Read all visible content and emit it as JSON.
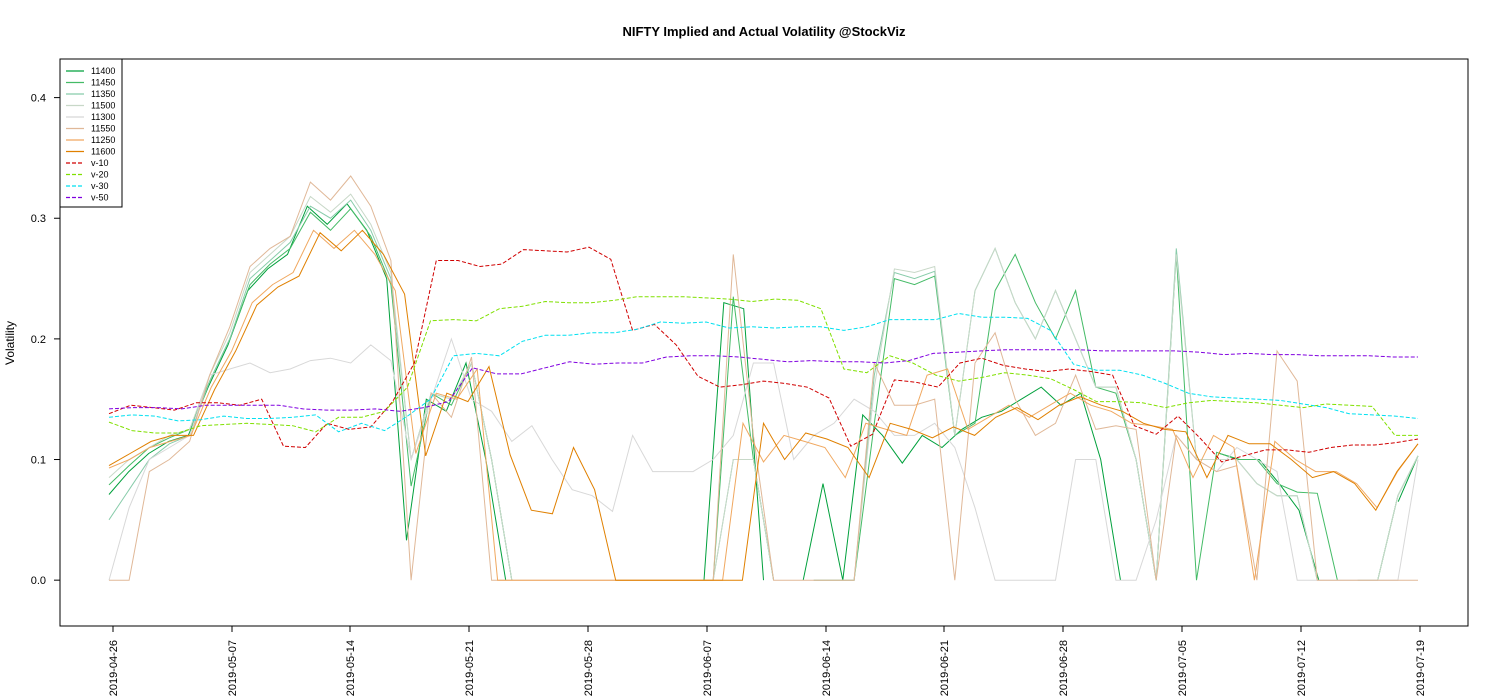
{
  "chart_data": {
    "type": "line",
    "title": "NIFTY Implied and Actual Volatility @StockViz",
    "xlabel": "",
    "ylabel": "Volatility",
    "ylim": [
      -0.038,
      0.432
    ],
    "yticks": [
      0.0,
      0.1,
      0.2,
      0.3,
      0.4
    ],
    "ytick_labels": [
      "0.0",
      "0.1",
      "0.2",
      "0.3",
      "0.4"
    ],
    "xlim": [
      0,
      58
    ],
    "xticks": [
      0,
      7,
      14,
      21,
      28,
      35,
      42,
      49,
      56
    ],
    "xtick_labels": [
      "2019-04-26",
      "2019-05-07",
      "2019-05-14",
      "2019-05-21",
      "2019-05-28",
      "2019-06-07",
      "2019-06-14",
      "2019-06-21",
      "2019-06-28",
      "2019-07-05",
      "2019-07-12",
      "2019-07-19"
    ],
    "xtick_positions": [
      0,
      7,
      14,
      21,
      28,
      35,
      42,
      49,
      56,
      63,
      70,
      77
    ],
    "legend_position": "top-left",
    "grid": false,
    "series": [
      {
        "name": "11400",
        "color": "#00a03c",
        "dash": "",
        "values": [
          0.071,
          0.09,
          0.105,
          0.115,
          0.12,
          0.16,
          0.195,
          0.24,
          0.258,
          0.27,
          0.31,
          0.295,
          0.312,
          0.29,
          0.25,
          0.033,
          0.15,
          0.14,
          0.18,
          0.1,
          0.0,
          null,
          null,
          null,
          null,
          null,
          null,
          null,
          null,
          null,
          0.0,
          0.23,
          0.225,
          0.0,
          null,
          0.0,
          0.08,
          0.0,
          0.137,
          0.12,
          0.097,
          0.12,
          0.11,
          0.125,
          0.135,
          0.14,
          0.15,
          0.16,
          0.145,
          0.155,
          0.1,
          0.0,
          null,
          null,
          null,
          null,
          0.105,
          0.1,
          0.1,
          0.08,
          0.058,
          0.0,
          null,
          null,
          null,
          0.065,
          0.103
        ]
      },
      {
        "name": "11450",
        "color": "#44bb66",
        "dash": "",
        "values": [
          0.079,
          0.095,
          0.11,
          0.118,
          0.125,
          0.165,
          0.2,
          0.245,
          0.262,
          0.275,
          0.305,
          0.29,
          0.308,
          0.285,
          0.245,
          0.078,
          0.155,
          0.145,
          0.18,
          0.1,
          0.0,
          null,
          null,
          null,
          null,
          null,
          null,
          null,
          null,
          null,
          0.0,
          0.235,
          0.1,
          0.0,
          null,
          0.0,
          0.0,
          0.0,
          0.13,
          0.25,
          0.245,
          0.252,
          0.12,
          0.13,
          0.24,
          0.27,
          0.23,
          0.2,
          0.24,
          0.16,
          0.155,
          0.1,
          0.0,
          0.27,
          0.0,
          0.106,
          0.1,
          0.1,
          0.08,
          0.073,
          0.072,
          0.0,
          null,
          0.0,
          0.07,
          0.103
        ]
      },
      {
        "name": "11350",
        "color": "#88ccaa",
        "dash": "",
        "values": [
          0.05,
          0.075,
          0.1,
          0.113,
          0.12,
          0.165,
          0.2,
          0.25,
          0.265,
          0.28,
          0.31,
          0.3,
          0.315,
          0.29,
          0.25,
          0.1,
          0.155,
          0.15,
          0.18,
          0.1,
          0.0,
          null,
          null,
          null,
          null,
          null,
          null,
          null,
          null,
          null,
          0.0,
          0.1,
          0.1,
          0.0,
          null,
          0.0,
          0.0,
          0.0,
          0.17,
          0.255,
          0.25,
          0.256,
          0.12,
          0.24,
          0.275,
          0.23,
          0.2,
          0.24,
          0.2,
          0.16,
          0.16,
          0.1,
          0.0,
          0.275,
          0.1,
          0.1,
          0.1,
          0.08,
          0.07,
          0.07,
          0.0,
          null,
          0.0,
          0.0,
          0.07,
          0.103
        ]
      },
      {
        "name": "11500",
        "color": "#c8d8c8",
        "dash": "",
        "values": [
          0.085,
          0.1,
          0.11,
          0.12,
          0.125,
          0.17,
          0.205,
          0.255,
          0.27,
          0.285,
          0.318,
          0.305,
          0.32,
          0.295,
          0.255,
          0.1,
          0.155,
          0.15,
          0.18,
          0.1,
          0.0,
          null,
          null,
          null,
          null,
          null,
          null,
          null,
          null,
          null,
          0.0,
          0.1,
          0.1,
          0.0,
          null,
          0.0,
          0.0,
          0.0,
          0.16,
          0.258,
          0.255,
          0.26,
          0.12,
          0.24,
          0.275,
          0.23,
          0.2,
          0.24,
          0.2,
          0.16,
          0.16,
          0.1,
          0.0,
          0.27,
          0.1,
          0.1,
          0.1,
          0.08,
          0.07,
          0.07,
          0.0,
          null,
          0.0,
          0.0,
          0.07,
          0.103
        ]
      },
      {
        "name": "11300",
        "color": "#d8d8d8",
        "dash": "",
        "values": [
          0.0,
          0.06,
          0.1,
          0.11,
          0.12,
          0.17,
          0.175,
          0.18,
          0.172,
          0.175,
          0.182,
          0.184,
          0.18,
          0.195,
          0.182,
          0.1,
          0.15,
          0.2,
          0.15,
          0.14,
          0.115,
          0.128,
          0.1,
          0.075,
          0.07,
          0.057,
          0.12,
          0.09,
          0.09,
          0.09,
          0.1,
          0.12,
          0.18,
          0.18,
          0.1,
          0.12,
          0.13,
          0.15,
          0.14,
          0.12,
          0.12,
          0.13,
          0.11,
          0.06,
          0.0,
          0.0,
          0.0,
          0.0,
          0.1,
          0.1,
          0.0,
          0.0,
          0.05,
          0.12,
          0.1,
          0.09,
          0.11,
          0.1,
          0.09,
          0.0,
          0.0,
          0.0,
          0.0,
          0.0,
          0.0,
          0.1
        ]
      },
      {
        "name": "11550",
        "color": "#e0b898",
        "dash": "",
        "values": [
          0.0,
          0.0,
          0.09,
          0.1,
          0.115,
          0.17,
          0.21,
          0.26,
          0.275,
          0.285,
          0.33,
          0.315,
          0.335,
          0.31,
          0.265,
          0.0,
          0.155,
          0.135,
          0.185,
          0.0,
          0.0,
          0.0,
          0.0,
          0.0,
          0.0,
          0.0,
          0.0,
          0.0,
          0.0,
          0.0,
          0.0,
          0.27,
          0.12,
          0.0,
          0.0,
          0.0,
          0.0,
          0.0,
          0.18,
          0.145,
          0.145,
          0.15,
          0.0,
          0.18,
          0.205,
          0.15,
          0.12,
          0.13,
          0.17,
          0.125,
          0.128,
          0.125,
          0.0,
          0.12,
          0.1,
          0.09,
          0.095,
          0.0,
          0.19,
          0.165,
          0.0,
          0.0,
          0.0,
          0.0,
          0.0,
          0.0
        ]
      },
      {
        "name": "11250",
        "color": "#f0a860",
        "dash": "",
        "values": [
          0.093,
          0.1,
          0.11,
          0.115,
          0.12,
          0.16,
          0.19,
          0.23,
          0.245,
          0.255,
          0.29,
          0.275,
          0.29,
          0.27,
          0.24,
          0.105,
          0.155,
          0.15,
          0.175,
          0.0,
          0.0,
          0.0,
          0.0,
          0.0,
          0.0,
          0.0,
          0.0,
          0.0,
          0.0,
          0.0,
          0.0,
          0.13,
          0.098,
          0.12,
          0.115,
          0.11,
          0.085,
          0.13,
          0.125,
          0.12,
          0.17,
          0.175,
          0.125,
          0.135,
          0.145,
          0.135,
          0.145,
          0.155,
          0.145,
          0.14,
          0.13,
          0.128,
          0.125,
          0.085,
          0.12,
          0.11,
          0.0,
          0.115,
          0.1,
          0.09,
          0.09,
          0.08,
          0.06,
          0.09,
          0.113
        ]
      },
      {
        "name": "11600",
        "color": "#e08000",
        "dash": "",
        "values": [
          0.095,
          0.105,
          0.115,
          0.12,
          0.12,
          0.158,
          0.19,
          0.228,
          0.243,
          0.252,
          0.288,
          0.273,
          0.29,
          0.27,
          0.237,
          0.103,
          0.155,
          0.148,
          0.177,
          0.104,
          0.058,
          0.055,
          0.11,
          0.075,
          0.0,
          0.0,
          0.0,
          0.0,
          0.0,
          0.0,
          0.0,
          0.13,
          0.1,
          0.122,
          0.117,
          0.11,
          0.085,
          0.13,
          0.125,
          0.118,
          0.127,
          0.12,
          0.135,
          0.143,
          0.133,
          0.145,
          0.152,
          0.145,
          0.14,
          0.13,
          0.125,
          0.123,
          0.085,
          0.12,
          0.113,
          0.113,
          0.1,
          0.085,
          0.09,
          0.08,
          0.058,
          0.09,
          0.113
        ]
      },
      {
        "name": "v-10",
        "color": "#d00000",
        "dash": "4,2",
        "values": [
          0.138,
          0.145,
          0.143,
          0.141,
          0.147,
          0.147,
          0.145,
          0.15,
          0.111,
          0.11,
          0.13,
          0.125,
          0.127,
          0.148,
          0.18,
          0.265,
          0.265,
          0.26,
          0.262,
          0.274,
          0.273,
          0.272,
          0.276,
          0.266,
          0.207,
          0.212,
          0.195,
          0.169,
          0.16,
          0.162,
          0.165,
          0.163,
          0.16,
          0.151,
          0.111,
          0.121,
          0.166,
          0.164,
          0.16,
          0.18,
          0.184,
          0.178,
          0.175,
          0.173,
          0.175,
          0.173,
          0.17,
          0.128,
          0.121,
          0.136,
          0.118,
          0.098,
          0.103,
          0.108,
          0.108,
          0.106,
          0.11,
          0.112,
          0.112,
          0.114,
          0.117
        ]
      },
      {
        "name": "v-20",
        "color": "#80e000",
        "dash": "4,2",
        "values": [
          0.131,
          0.124,
          0.122,
          0.122,
          0.128,
          0.129,
          0.13,
          0.129,
          0.128,
          0.123,
          0.135,
          0.135,
          0.14,
          0.16,
          0.215,
          0.216,
          0.215,
          0.225,
          0.227,
          0.231,
          0.23,
          0.23,
          0.232,
          0.235,
          0.235,
          0.235,
          0.234,
          0.233,
          0.231,
          0.233,
          0.232,
          0.225,
          0.175,
          0.172,
          0.186,
          0.18,
          0.17,
          0.165,
          0.168,
          0.172,
          0.17,
          0.167,
          0.158,
          0.148,
          0.148,
          0.147,
          0.143,
          0.147,
          0.149,
          0.148,
          0.147,
          0.145,
          0.143,
          0.146,
          0.145,
          0.144,
          0.12,
          0.12
        ]
      },
      {
        "name": "v-30",
        "color": "#00e0f0",
        "dash": "4,2",
        "values": [
          0.135,
          0.137,
          0.136,
          0.132,
          0.133,
          0.136,
          0.134,
          0.134,
          0.135,
          0.137,
          0.123,
          0.13,
          0.124,
          0.136,
          0.15,
          0.186,
          0.188,
          0.186,
          0.198,
          0.203,
          0.203,
          0.205,
          0.205,
          0.208,
          0.214,
          0.213,
          0.214,
          0.209,
          0.21,
          0.209,
          0.21,
          0.21,
          0.207,
          0.21,
          0.216,
          0.216,
          0.216,
          0.221,
          0.218,
          0.218,
          0.217,
          0.207,
          0.179,
          0.174,
          0.174,
          0.17,
          0.163,
          0.155,
          0.152,
          0.151,
          0.15,
          0.149,
          0.146,
          0.143,
          0.138,
          0.137,
          0.136,
          0.134
        ]
      },
      {
        "name": "v-50",
        "color": "#8000e0",
        "dash": "4,2",
        "values": [
          0.142,
          0.143,
          0.143,
          0.142,
          0.145,
          0.145,
          0.145,
          0.145,
          0.142,
          0.141,
          0.141,
          0.142,
          0.14,
          0.143,
          0.148,
          0.176,
          0.171,
          0.171,
          0.176,
          0.181,
          0.179,
          0.18,
          0.18,
          0.185,
          0.186,
          0.186,
          0.185,
          0.183,
          0.181,
          0.182,
          0.181,
          0.181,
          0.18,
          0.182,
          0.188,
          0.189,
          0.19,
          0.191,
          0.191,
          0.191,
          0.191,
          0.19,
          0.19,
          0.19,
          0.19,
          0.189,
          0.187,
          0.188,
          0.187,
          0.187,
          0.186,
          0.186,
          0.186,
          0.185,
          0.185
        ]
      }
    ]
  }
}
